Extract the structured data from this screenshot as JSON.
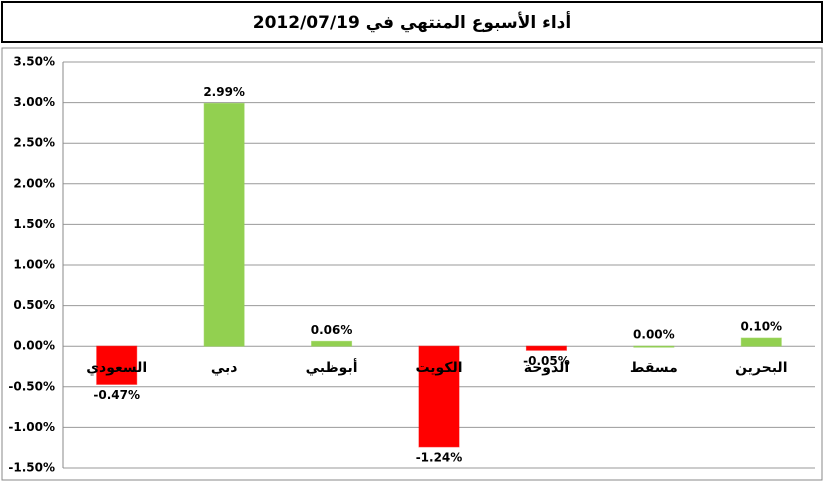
{
  "chart_data": {
    "type": "bar",
    "title": "أداء الأسبوع المنتهي في 2012/07/19",
    "categories": [
      "السعودي",
      "دبي",
      "أبوظبي",
      "الكويت",
      "الدوحة",
      "مسقط",
      "البحرين"
    ],
    "values": [
      -0.47,
      2.99,
      0.06,
      -1.24,
      -0.05,
      0.0,
      0.1
    ],
    "value_labels": [
      "-0.47%",
      "2.99%",
      "0.06%",
      "-1.24%",
      "-0.05%",
      "0.00%",
      "0.10%"
    ],
    "colors": [
      "#ff0000",
      "#92d050",
      "#92d050",
      "#ff0000",
      "#ff0000",
      "#92d050",
      "#92d050"
    ],
    "ylim": [
      -1.5,
      3.5
    ],
    "yticks": [
      {
        "value": -1.5,
        "label": "-1.50%"
      },
      {
        "value": -1.0,
        "label": "-1.00%"
      },
      {
        "value": -0.5,
        "label": "-0.50%"
      },
      {
        "value": 0,
        "label": "0.00%"
      },
      {
        "value": 0.5,
        "label": "0.50%"
      },
      {
        "value": 1.0,
        "label": "1.00%"
      },
      {
        "value": 1.5,
        "label": "1.50%"
      },
      {
        "value": 2.0,
        "label": "2.00%"
      },
      {
        "value": 2.5,
        "label": "2.50%"
      },
      {
        "value": 3.0,
        "label": "3.00%"
      },
      {
        "value": 3.5,
        "label": "3.50%"
      }
    ],
    "grid": true
  }
}
